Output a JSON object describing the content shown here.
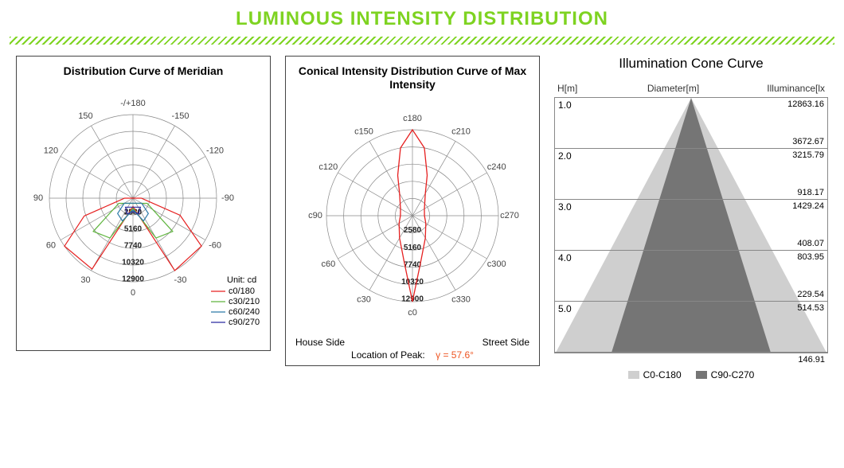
{
  "title": "LUMINOUS INTENSITY DISTRIBUTION",
  "colors": {
    "accent": "#7ed321",
    "grid": "#888888",
    "text": "#333333",
    "peak_hl": "#ee5522"
  },
  "polar1": {
    "title": "Distribution Curve of Meridian",
    "angle_labels": [
      "-/+180",
      "150",
      "120",
      "90",
      "60",
      "30",
      "0",
      "-30",
      "-60",
      "-90",
      "-120",
      "-150"
    ],
    "ring_values": [
      2580,
      5160,
      7740,
      10320,
      12900
    ],
    "unit": "Unit: cd",
    "series": [
      {
        "label": "c0/180",
        "color": "#e62020"
      },
      {
        "label": "c30/210",
        "color": "#5fb53e"
      },
      {
        "label": "c60/240",
        "color": "#2c7aa8"
      },
      {
        "label": "c90/270",
        "color": "#2a2aa0"
      }
    ],
    "curve_c0": [
      [
        0,
        10
      ],
      [
        -30,
        100
      ],
      [
        -55,
        100
      ],
      [
        -70,
        60
      ],
      [
        -90,
        10
      ],
      [
        90,
        10
      ],
      [
        70,
        62
      ],
      [
        55,
        100
      ],
      [
        30,
        98
      ],
      [
        0,
        10
      ]
    ],
    "curve_c30": [
      [
        0,
        12
      ],
      [
        -30,
        55
      ],
      [
        -50,
        62
      ],
      [
        -70,
        18
      ],
      [
        70,
        18
      ],
      [
        50,
        62
      ],
      [
        30,
        55
      ],
      [
        0,
        12
      ]
    ],
    "curve_c60": [
      [
        0,
        14
      ],
      [
        -25,
        30
      ],
      [
        -45,
        26
      ],
      [
        -60,
        12
      ],
      [
        60,
        12
      ],
      [
        45,
        26
      ],
      [
        25,
        30
      ],
      [
        0,
        14
      ]
    ],
    "curve_c90": [
      [
        0,
        16
      ],
      [
        -20,
        20
      ],
      [
        -40,
        14
      ],
      [
        40,
        14
      ],
      [
        20,
        20
      ],
      [
        0,
        16
      ]
    ]
  },
  "polar2": {
    "title": "Conical Intensity Distribution Curve of  Max Intensity",
    "angle_labels": [
      "c180",
      "c150",
      "c120",
      "c90",
      "c60",
      "c30",
      "c0",
      "c330",
      "c300",
      "c270",
      "c240",
      "c210"
    ],
    "ring_values": [
      2580,
      5160,
      7740,
      10320,
      12900
    ],
    "footer_left": "House Side",
    "footer_right": "Street Side",
    "peak_label": "Location of Peak:",
    "peak_value": "γ = 57.6°",
    "curve_color": "#e62020",
    "curve": [
      [
        180,
        100
      ],
      [
        170,
        80
      ],
      [
        160,
        50
      ],
      [
        150,
        30
      ],
      [
        120,
        16
      ],
      [
        90,
        14
      ],
      [
        60,
        18
      ],
      [
        30,
        30
      ],
      [
        10,
        55
      ],
      [
        0,
        100
      ],
      [
        -10,
        55
      ],
      [
        -30,
        30
      ],
      [
        -60,
        18
      ],
      [
        -90,
        14
      ],
      [
        -120,
        16
      ],
      [
        -150,
        30
      ],
      [
        -160,
        50
      ],
      [
        -170,
        80
      ],
      [
        -180,
        100
      ]
    ]
  },
  "cone": {
    "title": "Illumination Cone Curve",
    "head": {
      "l": "H[m]",
      "c": "Diameter[m]",
      "r": "Illuminance[lx"
    },
    "rows": [
      {
        "h": "1.0",
        "v1": "12863.16",
        "v2": "3672.67"
      },
      {
        "h": "2.0",
        "v1": "3215.79",
        "v2": "918.17"
      },
      {
        "h": "3.0",
        "v1": "1429.24",
        "v2": "408.07"
      },
      {
        "h": "4.0",
        "v1": "803.95",
        "v2": "229.54"
      },
      {
        "h": "5.0",
        "v1": "514.53",
        "v2": ""
      }
    ],
    "last": "146.91",
    "tri_light": "#cfcfcf",
    "tri_dark": "#757575",
    "legend": [
      {
        "label": "C0-C180",
        "color": "#cfcfcf"
      },
      {
        "label": "C90-C270",
        "color": "#757575"
      }
    ]
  }
}
